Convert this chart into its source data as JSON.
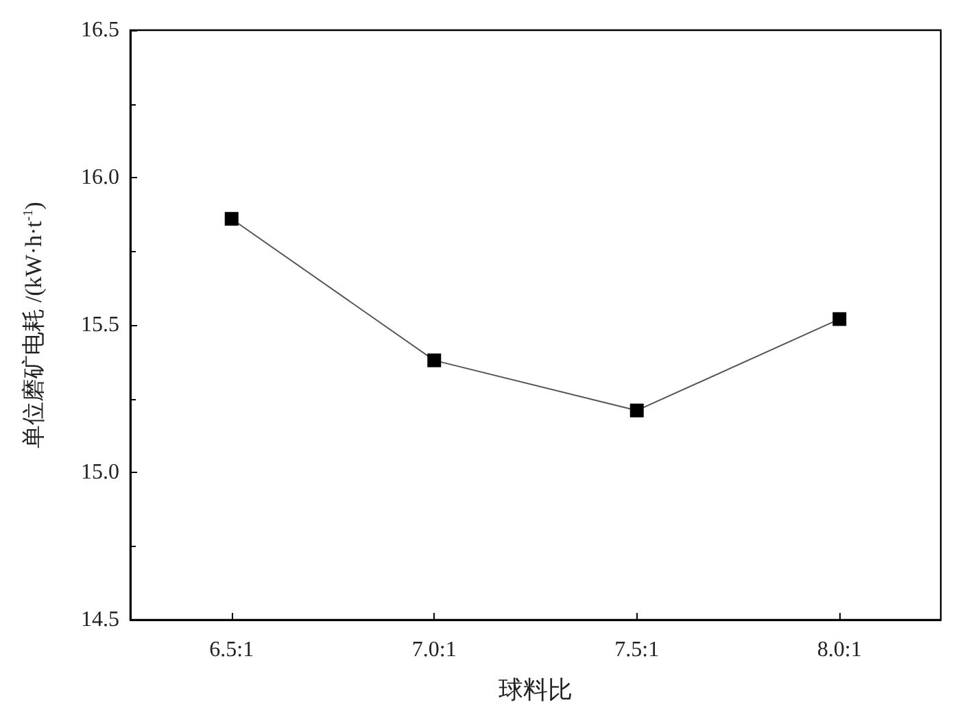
{
  "chart_data": {
    "type": "line",
    "xlabel": "球料比",
    "ylabel": "单位磨矿电耗 /(kW·h·t$^{-1}$)",
    "categories": [
      "6.5:1",
      "7.0:1",
      "7.5:1",
      "8.0:1"
    ],
    "series": [
      {
        "color": "#000000",
        "values": [
          15.86,
          15.38,
          15.21,
          15.52
        ]
      }
    ],
    "ylim": [
      14.5,
      16.5
    ],
    "yticks": [
      {
        "value": 14.5,
        "label": "14.5"
      },
      {
        "value": 15,
        "label": "15.0"
      },
      {
        "value": 15.5,
        "label": "15.5"
      },
      {
        "value": 16,
        "label": "16.0"
      },
      {
        "value": 16.5,
        "label": "16.5"
      }
    ],
    "marker": "square",
    "line_style": "solid",
    "grid": false
  }
}
